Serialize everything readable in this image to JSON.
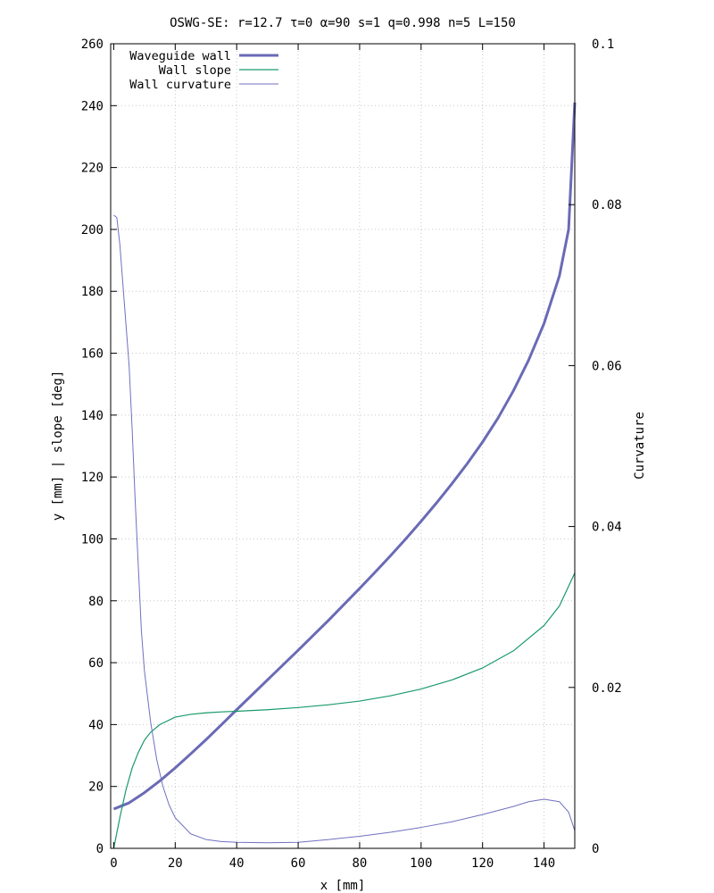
{
  "chart_data": {
    "type": "line",
    "title": "OSWG-SE: r=12.7 τ=0 α=90 s=1 q=0.998 n=5 L=150",
    "xlabel": "x [mm]",
    "ylabel": "y [mm] | slope [deg]",
    "y2label": "Curvature",
    "xlim": [
      -1,
      150
    ],
    "ylim": [
      0,
      260
    ],
    "y2lim": [
      0,
      0.1
    ],
    "xticks": [
      "0",
      "20",
      "40",
      "60",
      "80",
      "100",
      "120",
      "140"
    ],
    "yticks": [
      "0",
      "20",
      "40",
      "60",
      "80",
      "100",
      "120",
      "140",
      "160",
      "180",
      "200",
      "220",
      "240",
      "260"
    ],
    "y2ticks": [
      "0",
      "0.02",
      "0.04",
      "0.06",
      "0.08",
      "0.1"
    ],
    "grid": true,
    "legend_position": "top-left",
    "series": [
      {
        "name": "Waveguide wall",
        "axis": "y",
        "color": "#6a6ab6",
        "x": [
          0,
          5,
          10,
          15,
          20,
          25,
          30,
          35,
          40,
          45,
          50,
          55,
          60,
          65,
          70,
          75,
          80,
          85,
          90,
          95,
          100,
          105,
          110,
          115,
          120,
          125,
          130,
          135,
          140,
          145,
          148,
          150
        ],
        "y": [
          12.7,
          14.7,
          18.0,
          21.8,
          26.0,
          30.5,
          35.1,
          39.9,
          44.8,
          49.6,
          54.4,
          59.2,
          64.0,
          68.9,
          73.8,
          78.9,
          84.0,
          89.2,
          94.5,
          100.0,
          105.7,
          111.6,
          117.8,
          124.3,
          131.3,
          139.0,
          147.8,
          157.8,
          169.6,
          185.0,
          200.0,
          241.0
        ]
      },
      {
        "name": "Wall slope",
        "axis": "y",
        "color": "#1a9a6a",
        "x": [
          0,
          2,
          4,
          6,
          8,
          10,
          12,
          15,
          20,
          25,
          30,
          35,
          40,
          50,
          60,
          70,
          80,
          90,
          100,
          110,
          120,
          130,
          140,
          145,
          150
        ],
        "y": [
          0,
          10,
          19,
          26,
          31,
          35,
          37.5,
          40,
          42.4,
          43.3,
          43.8,
          44.1,
          44.3,
          44.8,
          45.5,
          46.4,
          47.6,
          49.3,
          51.5,
          54.4,
          58.3,
          63.8,
          72.0,
          78.3,
          89.0
        ]
      },
      {
        "name": "Wall curvature",
        "axis": "y2",
        "color": "#7070c0",
        "x": [
          0,
          1,
          2,
          3,
          4,
          5,
          6,
          7,
          8,
          9,
          10,
          12,
          14,
          16,
          18,
          20,
          25,
          30,
          35,
          40,
          50,
          60,
          70,
          80,
          90,
          100,
          110,
          120,
          130,
          135,
          140,
          145,
          148,
          150
        ],
        "y": [
          0.0787,
          0.0784,
          0.075,
          0.07,
          0.065,
          0.06,
          0.052,
          0.043,
          0.035,
          0.027,
          0.022,
          0.0157,
          0.011,
          0.0077,
          0.0054,
          0.0038,
          0.0018,
          0.0011,
          0.00085,
          0.00075,
          0.0007,
          0.00075,
          0.0011,
          0.0015,
          0.002,
          0.0026,
          0.0033,
          0.0042,
          0.0052,
          0.0058,
          0.0061,
          0.0058,
          0.0045,
          0.0022
        ]
      }
    ]
  }
}
